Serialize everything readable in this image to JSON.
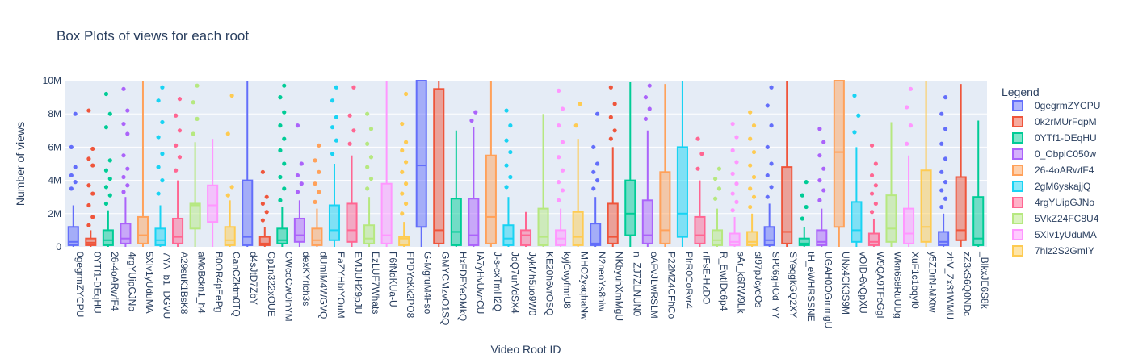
{
  "chart_data": {
    "type": "box",
    "title": "Box Plots of views for each root",
    "xlabel": "Video Root ID",
    "ylabel": "Number of views",
    "y_ticks": [
      "0",
      "2M",
      "4M",
      "6M",
      "8M",
      "10M"
    ],
    "ylim": [
      0,
      10000000
    ],
    "grid": true,
    "legend_title": "Legend",
    "legend_placement": "right",
    "legend_entries": [
      "0gegrmZYCPU",
      "0k2rMUrFqpM",
      "0YTf1-DEqHU",
      "0_ObpiC050w",
      "26-4oARwfF4",
      "2gM6yskajjQ",
      "4rgYUipGJNo",
      "5VkZ24FC8U4",
      "5XIv1yUduMA",
      "7hlz2S2GmIY"
    ],
    "categories": [
      "0gegrmZYCPU",
      "0YTf1-DEqHU",
      "26-4oARwfF4",
      "4rgYUipGJNo",
      "5XIv1yUduMA",
      "7YA_b1_DGVU",
      "A29suK1BsK8",
      "aMoBckn1_h4",
      "B0OR4pEePg",
      "CanCZktm0TQ",
      "d4sJtD7ZbY",
      "Cp1n322xOUE",
      "CWcoCwOlhYM",
      "dexKYrlch3s",
      "dUmIM4WGVQ",
      "EaZYHbtYOuM",
      "EVIJUH29pJU",
      "EzLUF7Whats",
      "F6fNdKUa-U",
      "FPDYeKk2PO8",
      "G-MgruM4Fso",
      "GMYCMzvO1SQ",
      "HxFDFYeOMkQ",
      "IA7yHvUwrCU",
      "J-s-cxTmH2Q",
      "JdQ7urVdSX4",
      "JykMh5uo9W0",
      "KE20h6vrOSQ",
      "kyjCwyfmrU8",
      "MHO2yaqhaNw",
      "N2neoYs8niw",
      "NKbyuhXmMgU",
      "n_ZJ7ZLNUN0",
      "oAFvJLwRSLM",
      "P22MZ4CFhCo",
      "PlrR0CoRvr4",
      "rfFsE-HzDO",
      "R_EwtIDc6p4",
      "sAr_k6RW9Lk",
      "sI97pJcyeOs",
      "SP06gHOd_YY",
      "SYeqgkGQ2XY",
      "tH_eWHRSSNE",
      "UGAH0OGmmgU",
      "UNx4CK3S9M",
      "vOID-6vQpXU",
      "W9QA9TFeGgI",
      "Wkn6s8RuUDg",
      "XuF1c1bqyI0",
      "y5ZDrN-MXtw",
      "zhV_Zx31WMU",
      "zZ3kS6Q0NDc",
      "_BlkxJE6S8k"
    ],
    "colors": [
      "#636efa",
      "#EF553B",
      "#00cc96",
      "#ab63fa",
      "#FFA15A",
      "#19d3f3",
      "#FF6692",
      "#B6E880",
      "#FF97FF",
      "#FECB52"
    ],
    "series": [
      {
        "id": "0gegrmZYCPU",
        "q1": 100000,
        "median": 300000,
        "q3": 1200000,
        "lf": 0,
        "uf": 2500000,
        "outliers": [
          3500000,
          3900000,
          4300000,
          4800000,
          6000000,
          8000000
        ]
      },
      {
        "id": "0YTf1-DEqHU",
        "q1": 100000,
        "median": 250000,
        "q3": 500000,
        "lf": 0,
        "uf": 1000000,
        "outliers": [
          1300000,
          1800000,
          2500000,
          3200000,
          3700000,
          4900000,
          5300000,
          5900000,
          8200000
        ]
      },
      {
        "id": "26-4oARwfF4",
        "q1": 100000,
        "median": 400000,
        "q3": 1000000,
        "lf": 0,
        "uf": 2200000,
        "outliers": [
          2600000,
          3100000,
          3600000,
          4100000,
          4600000,
          5200000,
          7200000,
          8000000,
          9200000
        ]
      },
      {
        "id": "4rgYUipGJNo",
        "q1": 200000,
        "median": 500000,
        "q3": 1400000,
        "lf": 0,
        "uf": 3000000,
        "outliers": [
          3300000,
          3700000,
          4200000,
          4700000,
          5500000,
          6800000,
          7400000,
          8200000,
          9500000
        ]
      },
      {
        "id": "5XIv1yUduMA",
        "q1": 200000,
        "median": 700000,
        "q3": 1800000,
        "lf": 0,
        "uf": 10000000,
        "outliers": []
      },
      {
        "id": "7YA_b1_DGVU",
        "q1": 100000,
        "median": 400000,
        "q3": 1100000,
        "lf": 0,
        "uf": 2500000,
        "outliers": [
          3200000,
          4000000,
          4800000,
          5600000,
          6600000,
          7500000,
          8800000,
          9600000
        ]
      },
      {
        "id": "A29suK1BsK8",
        "q1": 200000,
        "median": 600000,
        "q3": 1700000,
        "lf": 0,
        "uf": 4000000,
        "outliers": [
          4600000,
          5400000,
          6100000,
          7000000,
          7900000,
          8900000
        ]
      },
      {
        "id": "aMoBckn1_h4",
        "q1": 1100000,
        "median": 2500000,
        "q3": 2600000,
        "lf": 0,
        "uf": 6300000,
        "outliers": [
          6800000,
          7700000,
          8700000,
          9700000
        ]
      },
      {
        "id": "B0OR4pEePg",
        "q1": 1500000,
        "median": 2500000,
        "q3": 3700000,
        "lf": 0,
        "uf": 6500000,
        "outliers": []
      },
      {
        "id": "CanCZktm0TQ",
        "q1": 100000,
        "median": 400000,
        "q3": 1200000,
        "lf": 0,
        "uf": 2800000,
        "outliers": [
          3100000,
          3600000,
          6800000,
          9100000
        ]
      },
      {
        "id": "d4sJtD7ZbY",
        "q1": 100000,
        "median": 600000,
        "q3": 4000000,
        "lf": 0,
        "uf": 10000000,
        "outliers": []
      },
      {
        "id": "Cp1n322xOUE",
        "q1": 100000,
        "median": 200000,
        "q3": 600000,
        "lf": 0,
        "uf": 1200000,
        "outliers": [
          1600000,
          2100000,
          2600000,
          3000000,
          4500000
        ]
      },
      {
        "id": "CWcoCwOlhYM",
        "q1": 200000,
        "median": 400000,
        "q3": 1100000,
        "lf": 0,
        "uf": 2400000,
        "outliers": [
          2800000,
          3500000,
          4200000,
          5000000,
          5800000,
          6500000,
          7300000,
          8100000,
          9000000,
          9700000
        ]
      },
      {
        "id": "dexKYrlch3s",
        "q1": 300000,
        "median": 700000,
        "q3": 1700000,
        "lf": 0,
        "uf": 2800000,
        "outliers": [
          3300000,
          3800000,
          4300000,
          5000000,
          7300000
        ]
      },
      {
        "id": "dUmIM4WGVQ",
        "q1": 100000,
        "median": 400000,
        "q3": 1100000,
        "lf": 0,
        "uf": 2300000,
        "outliers": [
          2700000,
          3300000,
          3800000,
          4500000,
          5200000,
          6100000
        ]
      },
      {
        "id": "EaZYHbtYOuM",
        "q1": 400000,
        "median": 1000000,
        "q3": 2500000,
        "lf": 0,
        "uf": 5000000,
        "outliers": [
          5600000,
          6400000,
          7200000,
          7800000,
          8800000,
          9600000
        ]
      },
      {
        "id": "EVIJUH29pJU",
        "q1": 300000,
        "median": 1000000,
        "q3": 2600000,
        "lf": 0,
        "uf": 5500000,
        "outliers": [
          6200000,
          7000000,
          7900000,
          9600000
        ]
      },
      {
        "id": "EzLUF7Whats",
        "q1": 200000,
        "median": 500000,
        "q3": 1300000,
        "lf": 0,
        "uf": 3000000,
        "outliers": [
          3500000,
          4100000,
          4800000,
          5400000,
          6200000,
          7100000,
          8000000
        ]
      },
      {
        "id": "F6fNdKUa-U",
        "q1": 200000,
        "median": 700000,
        "q3": 3800000,
        "lf": 0,
        "uf": 10000000,
        "outliers": []
      },
      {
        "id": "FPDYeKk2PO8",
        "q1": 100000,
        "median": 500000,
        "q3": 600000,
        "lf": 0,
        "uf": 1500000,
        "outliers": [
          2000000,
          2600000,
          3200000,
          3800000,
          4500000,
          5100000,
          5800000,
          6300000,
          7400000,
          9200000
        ]
      },
      {
        "id": "G-MgruM4Fso",
        "q1": 1200000,
        "median": 4900000,
        "q3": 10000000,
        "lf": 0,
        "uf": 10000000,
        "outliers": []
      },
      {
        "id": "GMYCMzvO1SQ",
        "q1": 200000,
        "median": 1000000,
        "q3": 9500000,
        "lf": 0,
        "uf": 10000000,
        "outliers": []
      },
      {
        "id": "HxFDFYeOMkQ",
        "q1": 100000,
        "median": 900000,
        "q3": 2900000,
        "lf": 0,
        "uf": 7000000,
        "outliers": []
      },
      {
        "id": "IA7yHvUwrCU",
        "q1": 100000,
        "median": 700000,
        "q3": 2900000,
        "lf": 0,
        "uf": 7200000,
        "outliers": [
          7600000,
          8100000
        ]
      },
      {
        "id": "J-s-cxTmH2Q",
        "q1": 200000,
        "median": 1800000,
        "q3": 5500000,
        "lf": 0,
        "uf": 10000000,
        "outliers": []
      },
      {
        "id": "JdQ7urVdSX4",
        "q1": 100000,
        "median": 500000,
        "q3": 1300000,
        "lf": 0,
        "uf": 3000000,
        "outliers": [
          3600000,
          4200000,
          4900000,
          5700000,
          6400000,
          7300000,
          8200000
        ]
      },
      {
        "id": "JykMh5uo9W0",
        "q1": 100000,
        "median": 700000,
        "q3": 1000000,
        "lf": 0,
        "uf": 2100000,
        "outliers": []
      },
      {
        "id": "KE20h6vrOSQ",
        "q1": 100000,
        "median": 600000,
        "q3": 2300000,
        "lf": 0,
        "uf": 8000000,
        "outliers": []
      },
      {
        "id": "kyjCwyfmrU8",
        "q1": 100000,
        "median": 500000,
        "q3": 1000000,
        "lf": 0,
        "uf": 2300000,
        "outliers": [
          2800000,
          3400000,
          3900000,
          4600000,
          5400000,
          6300000,
          7300000,
          8300000,
          9400000
        ]
      },
      {
        "id": "MHO2yaqhaNw",
        "q1": 100000,
        "median": 600000,
        "q3": 2100000,
        "lf": 0,
        "uf": 6500000,
        "outliers": [
          7300000,
          8600000
        ]
      },
      {
        "id": "N2neoYs8niw",
        "q1": 100000,
        "median": 200000,
        "q3": 1400000,
        "lf": 0,
        "uf": 3000000,
        "outliers": [
          3500000,
          4000000,
          4500000,
          5000000,
          6000000,
          8000000
        ]
      },
      {
        "id": "NKbyuhXmMgU",
        "q1": 200000,
        "median": 600000,
        "q3": 2600000,
        "lf": 0,
        "uf": 6000000,
        "outliers": [
          6500000,
          7000000,
          7800000,
          8600000,
          9600000
        ]
      },
      {
        "id": "n_ZJ7ZLNUN0",
        "q1": 700000,
        "median": 2000000,
        "q3": 4000000,
        "lf": 0,
        "uf": 9900000,
        "outliers": []
      },
      {
        "id": "oAFvJLwRSLM",
        "q1": 200000,
        "median": 700000,
        "q3": 2800000,
        "lf": 0,
        "uf": 7000000,
        "outliers": [
          7700000,
          8300000,
          9000000,
          9700000
        ]
      },
      {
        "id": "P22MZ4CFhCo",
        "q1": 200000,
        "median": 1000000,
        "q3": 4500000,
        "lf": 0,
        "uf": 9800000,
        "outliers": []
      },
      {
        "id": "PlrR0CoRvr4",
        "q1": 600000,
        "median": 2000000,
        "q3": 6000000,
        "lf": 0,
        "uf": 10000000,
        "outliers": []
      },
      {
        "id": "rfFsE-HzDO",
        "q1": 200000,
        "median": 700000,
        "q3": 1800000,
        "lf": 0,
        "uf": 4000000,
        "outliers": [
          4700000,
          5600000,
          6500000
        ]
      },
      {
        "id": "R_EwtIDc6p4",
        "q1": 100000,
        "median": 400000,
        "q3": 1000000,
        "lf": 0,
        "uf": 2300000,
        "outliers": [
          2900000,
          3500000,
          4100000,
          4700000
        ]
      },
      {
        "id": "sAr_k6RW9Lk",
        "q1": 100000,
        "median": 300000,
        "q3": 800000,
        "lf": 0,
        "uf": 1800000,
        "outliers": [
          2200000,
          2700000,
          3200000,
          3800000,
          4400000,
          5100000,
          5800000,
          6600000,
          7400000
        ]
      },
      {
        "id": "sI97pJcyeOs",
        "q1": 100000,
        "median": 300000,
        "q3": 900000,
        "lf": 0,
        "uf": 2000000,
        "outliers": [
          2400000,
          3000000,
          3500000,
          4200000,
          4900000,
          5700000,
          6500000,
          7300000,
          8100000
        ]
      },
      {
        "id": "SP06gHOd_YY",
        "q1": 100000,
        "median": 400000,
        "q3": 1200000,
        "lf": 0,
        "uf": 2600000,
        "outliers": [
          3000000,
          3600000,
          4300000,
          5000000,
          6000000,
          7300000,
          8500000,
          9600000
        ]
      },
      {
        "id": "SYeqgkGQ2XY",
        "q1": 200000,
        "median": 900000,
        "q3": 4800000,
        "lf": 0,
        "uf": 10000000,
        "outliers": []
      },
      {
        "id": "tH_eWHRSSNE",
        "q1": 100000,
        "median": 200000,
        "q3": 500000,
        "lf": 0,
        "uf": 1200000,
        "outliers": [
          1700000,
          2400000,
          3100000,
          3900000
        ]
      },
      {
        "id": "UGAH0OGmmgU",
        "q1": 100000,
        "median": 300000,
        "q3": 1000000,
        "lf": 0,
        "uf": 2300000,
        "outliers": [
          2800000,
          3400000,
          4000000,
          4700000,
          5500000,
          6300000,
          7100000
        ]
      },
      {
        "id": "UNx4CK3S9M",
        "q1": 1200000,
        "median": 5700000,
        "q3": 10000000,
        "lf": 0,
        "uf": 10000000,
        "outliers": []
      },
      {
        "id": "vOID-6vQpXU",
        "q1": 300000,
        "median": 1000000,
        "q3": 2700000,
        "lf": 0,
        "uf": 6000000,
        "outliers": [
          6900000,
          7900000,
          9100000
        ]
      },
      {
        "id": "W9QA9TFeGgI",
        "q1": 100000,
        "median": 300000,
        "q3": 800000,
        "lf": 0,
        "uf": 1700000,
        "outliers": [
          2100000,
          2600000,
          3200000,
          3700000,
          4300000,
          5000000,
          6100000
        ]
      },
      {
        "id": "Wkn6s8RuUDg",
        "q1": 300000,
        "median": 1100000,
        "q3": 3100000,
        "lf": 0,
        "uf": 7500000,
        "outliers": []
      },
      {
        "id": "XuF1c1bqyI0",
        "q1": 200000,
        "median": 800000,
        "q3": 2300000,
        "lf": 0,
        "uf": 5500000,
        "outliers": [
          6200000,
          7300000,
          8400000,
          9500000
        ]
      },
      {
        "id": "y5ZDrN-MXtw",
        "q1": 300000,
        "median": 1200000,
        "q3": 4600000,
        "lf": 0,
        "uf": 10000000,
        "outliers": []
      },
      {
        "id": "zhV_Zx31WMU",
        "q1": 100000,
        "median": 300000,
        "q3": 900000,
        "lf": 0,
        "uf": 2000000,
        "outliers": [
          2400000,
          2900000,
          3400000,
          3900000,
          4500000,
          5300000,
          6200000,
          7100000,
          8000000,
          9000000
        ]
      },
      {
        "id": "zZ3kS6Q0NDc",
        "q1": 400000,
        "median": 1000000,
        "q3": 4200000,
        "lf": 0,
        "uf": 9800000,
        "outliers": []
      },
      {
        "id": "_BlkxJE6S8k",
        "q1": 100000,
        "median": 500000,
        "q3": 3000000,
        "lf": 0,
        "uf": 7600000,
        "outliers": []
      }
    ]
  }
}
